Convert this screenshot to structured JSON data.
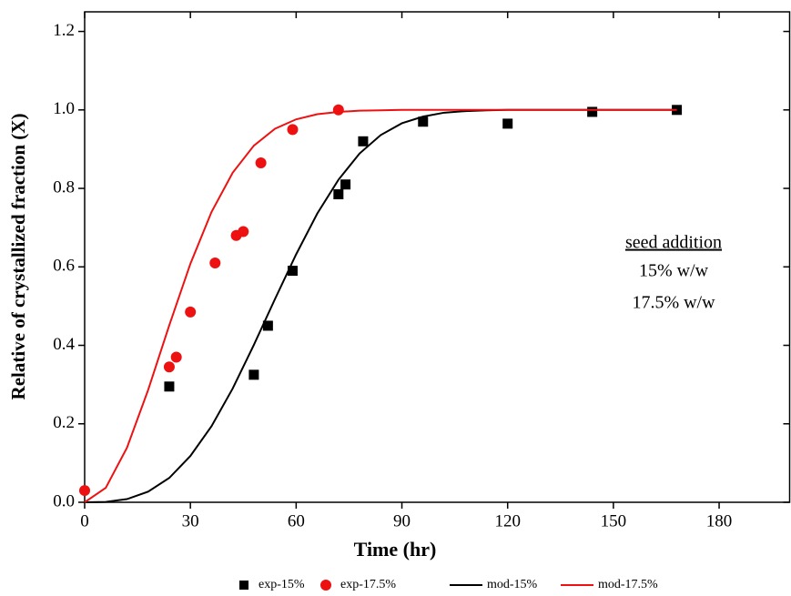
{
  "chart_data": {
    "type": "scatter",
    "x_label": "Time (hr)",
    "y_label": "Relative of crystallized fraction (X)",
    "xlim": [
      0,
      200
    ],
    "ylim": [
      0,
      1.25
    ],
    "xticks": [
      0,
      30,
      60,
      90,
      120,
      150,
      180
    ],
    "yticks": [
      {
        "value": 0,
        "label": "0.0"
      },
      {
        "value": 0.2,
        "label": "0.2"
      },
      {
        "value": 0.4,
        "label": "0.4"
      },
      {
        "value": 0.6,
        "label": "0.6"
      },
      {
        "value": 0.8,
        "label": "0.8"
      },
      {
        "value": 1.0,
        "label": "1.0"
      },
      {
        "value": 1.2,
        "label": "1.2"
      }
    ],
    "annotations": [
      "seed addition",
      "15% w/w",
      "17.5% w/w"
    ],
    "series": [
      {
        "name": "exp-15%",
        "type": "scatter",
        "marker": "square",
        "color": "#000000",
        "x": [
          24,
          48,
          52,
          59,
          72,
          74,
          79,
          96,
          120,
          144,
          168
        ],
        "values": [
          0.295,
          0.325,
          0.45,
          0.59,
          0.785,
          0.81,
          0.92,
          0.97,
          0.965,
          0.995,
          1.0
        ]
      },
      {
        "name": "exp-17.5%",
        "type": "scatter",
        "marker": "circle",
        "color": "#ee1111",
        "x": [
          0,
          24,
          26,
          30,
          37,
          43,
          45,
          50,
          59,
          72
        ],
        "values": [
          0.03,
          0.345,
          0.37,
          0.485,
          0.61,
          0.68,
          0.69,
          0.865,
          0.95,
          1.0
        ]
      },
      {
        "name": "mod-15%",
        "type": "line",
        "color": "#000000",
        "x": [
          0,
          6,
          12,
          18,
          24,
          30,
          36,
          42,
          48,
          54,
          60,
          66,
          72,
          78,
          84,
          90,
          96,
          102,
          108,
          114,
          120,
          132,
          144,
          156,
          168
        ],
        "values": [
          0,
          0.001,
          0.008,
          0.027,
          0.062,
          0.118,
          0.194,
          0.29,
          0.401,
          0.518,
          0.632,
          0.736,
          0.822,
          0.889,
          0.936,
          0.966,
          0.983,
          0.993,
          0.997,
          0.999,
          1,
          1,
          1,
          1,
          1
        ]
      },
      {
        "name": "mod-17.5%",
        "type": "line",
        "color": "#ee1111",
        "x": [
          0,
          6,
          12,
          18,
          24,
          30,
          36,
          42,
          48,
          54,
          60,
          66,
          72,
          78,
          84,
          90,
          108,
          126,
          144,
          168
        ],
        "values": [
          0,
          0.037,
          0.139,
          0.286,
          0.451,
          0.608,
          0.74,
          0.84,
          0.909,
          0.952,
          0.976,
          0.989,
          0.995,
          0.998,
          0.999,
          1,
          1,
          1,
          1,
          1
        ]
      }
    ]
  }
}
